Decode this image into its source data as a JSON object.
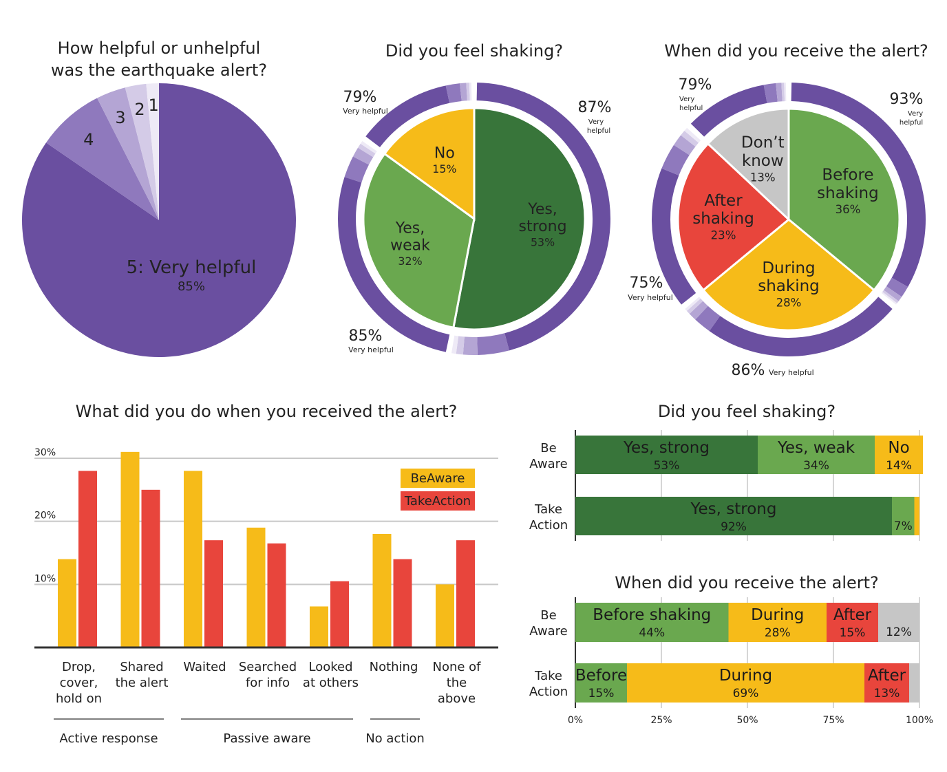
{
  "chart_data": [
    {
      "id": "helpfulness",
      "type": "pie",
      "title_lines": [
        "How helpful or unhelpful",
        "was the earthquake alert?"
      ],
      "slices": [
        {
          "label": "5: Very helpful",
          "pct_label": "85%",
          "value": 85,
          "color": "#6a4fa0"
        },
        {
          "label": "4",
          "value": 8,
          "color": "#8f79bd"
        },
        {
          "label": "3",
          "value": 3.5,
          "color": "#b4a5d4"
        },
        {
          "label": "2",
          "value": 2.5,
          "color": "#d4cbe7"
        },
        {
          "label": "1",
          "value": 1.5,
          "color": "#eeeaf6"
        }
      ]
    },
    {
      "id": "shaking-pie",
      "type": "pie",
      "title": "Did you feel shaking?",
      "slices": [
        {
          "label_lines": [
            "Yes,",
            "strong"
          ],
          "pct_label": "53%",
          "value": 53,
          "color": "#38753a"
        },
        {
          "label_lines": [
            "Yes,",
            "weak"
          ],
          "pct_label": "32%",
          "value": 32,
          "color": "#6aa84f"
        },
        {
          "label_lines": [
            "No"
          ],
          "pct_label": "15%",
          "value": 15,
          "color": "#f6bb19"
        }
      ],
      "ring": [
        {
          "pct": "87%",
          "note": "Very helpful",
          "very_helpful": 87
        },
        {
          "pct": "85%",
          "note": "Very helpful",
          "very_helpful": 85
        },
        {
          "pct": "79%",
          "note": "Very helpful",
          "very_helpful": 79
        }
      ]
    },
    {
      "id": "timing-pie",
      "type": "pie",
      "title": "When did you receive the alert?",
      "slices": [
        {
          "label_lines": [
            "Before",
            "shaking"
          ],
          "pct_label": "36%",
          "value": 36,
          "color": "#6aa84f"
        },
        {
          "label_lines": [
            "During",
            "shaking"
          ],
          "pct_label": "28%",
          "value": 28,
          "color": "#f6bb19"
        },
        {
          "label_lines": [
            "After",
            "shaking"
          ],
          "pct_label": "23%",
          "value": 23,
          "color": "#e8453c"
        },
        {
          "label_lines": [
            "Don’t",
            "know"
          ],
          "pct_label": "13%",
          "value": 13,
          "color": "#c6c6c6"
        }
      ],
      "ring": [
        {
          "pct": "93%",
          "note": "Very helpful",
          "very_helpful": 93
        },
        {
          "pct": "86%",
          "note": "Very helpful",
          "very_helpful": 86
        },
        {
          "pct": "75%",
          "note": "Very helpful",
          "very_helpful": 75
        },
        {
          "pct": "79%",
          "note": "Very helpful",
          "very_helpful": 79
        }
      ]
    },
    {
      "id": "actions",
      "type": "bar",
      "title": "What did you do when you received the alert?",
      "ylim": [
        0,
        30
      ],
      "yticks": [
        {
          "v": 10,
          "label": "10%"
        },
        {
          "v": 20,
          "label": "20%"
        },
        {
          "v": 30,
          "label": "30%"
        }
      ],
      "categories": [
        {
          "lines": [
            "Drop,",
            "cover,",
            "hold on"
          ]
        },
        {
          "lines": [
            "Shared",
            "the alert"
          ]
        },
        {
          "lines": [
            "Waited"
          ]
        },
        {
          "lines": [
            "Searched",
            "for info"
          ]
        },
        {
          "lines": [
            "Looked",
            "at others"
          ]
        },
        {
          "lines": [
            "Nothing"
          ]
        },
        {
          "lines": [
            "None of",
            "the",
            "above"
          ]
        }
      ],
      "series": [
        {
          "name": "BeAware",
          "color": "#f6bb19",
          "values": [
            14,
            31,
            28,
            19,
            6.5,
            18,
            10
          ]
        },
        {
          "name": "TakeAction",
          "color": "#e8453c",
          "values": [
            28,
            25,
            17,
            16.5,
            10.5,
            14,
            17
          ]
        }
      ],
      "groups": [
        {
          "label": "Active response",
          "from": 0,
          "to": 1
        },
        {
          "label": "Passive aware",
          "from": 2,
          "to": 4
        },
        {
          "label": "No action",
          "from": 5,
          "to": 5
        }
      ]
    },
    {
      "id": "shaking-stacked",
      "type": "bar",
      "orientation": "horizontal-stacked",
      "title": "Did you feel shaking?",
      "rows": [
        {
          "label_lines": [
            "Be",
            "Aware"
          ],
          "segments": [
            {
              "name": "Yes, strong",
              "pct": "53%",
              "value": 53,
              "color": "#38753a",
              "text": "#1b1b1b"
            },
            {
              "name": "Yes, weak",
              "pct": "34%",
              "value": 34,
              "color": "#6aa84f",
              "text": "#1b1b1b"
            },
            {
              "name": "No",
              "pct": "14%",
              "value": 14,
              "color": "#f6bb19",
              "text": "#1b1b1b"
            }
          ]
        },
        {
          "label_lines": [
            "Take",
            "Action"
          ],
          "segments": [
            {
              "name": "Yes, strong",
              "pct": "92%",
              "value": 92,
              "color": "#38753a",
              "text": "#1b1b1b"
            },
            {
              "name": "",
              "pct": "7%",
              "value": 6.5,
              "color": "#6aa84f",
              "text": "#1b1b1b"
            },
            {
              "name": "",
              "pct": "",
              "value": 1.5,
              "color": "#f6bb19",
              "text": "#1b1b1b"
            }
          ]
        }
      ]
    },
    {
      "id": "timing-stacked",
      "type": "bar",
      "orientation": "horizontal-stacked",
      "title": "When did you receive the alert?",
      "xticks": [
        "0%",
        "25%",
        "50%",
        "75%",
        "100%"
      ],
      "rows": [
        {
          "label_lines": [
            "Be",
            "Aware"
          ],
          "segments": [
            {
              "name": "Before shaking",
              "pct": "44%",
              "value": 44.5,
              "color": "#6aa84f",
              "text": "#1b1b1b"
            },
            {
              "name": "During",
              "pct": "28%",
              "value": 28.5,
              "color": "#f6bb19",
              "text": "#1b1b1b"
            },
            {
              "name": "After",
              "pct": "15%",
              "value": 15,
              "color": "#e8453c",
              "text": "#1b1b1b"
            },
            {
              "name": "",
              "pct": "12%",
              "value": 12,
              "color": "#c6c6c6",
              "text": "#1b1b1b"
            }
          ]
        },
        {
          "label_lines": [
            "Take",
            "Action"
          ],
          "segments": [
            {
              "name": "Before",
              "pct": "15%",
              "value": 15,
              "color": "#6aa84f",
              "text": "#1b1b1b"
            },
            {
              "name": "During",
              "pct": "69%",
              "value": 69,
              "color": "#f6bb19",
              "text": "#1b1b1b"
            },
            {
              "name": "After",
              "pct": "13%",
              "value": 13,
              "color": "#e8453c",
              "text": "#1b1b1b"
            },
            {
              "name": "",
              "pct": "",
              "value": 3,
              "color": "#c6c6c6",
              "text": "#1b1b1b"
            }
          ]
        }
      ]
    }
  ],
  "helpfulness_shades": [
    "#6a4fa0",
    "#8f79bd",
    "#b4a5d4",
    "#d4cbe7",
    "#eeeaf6"
  ]
}
